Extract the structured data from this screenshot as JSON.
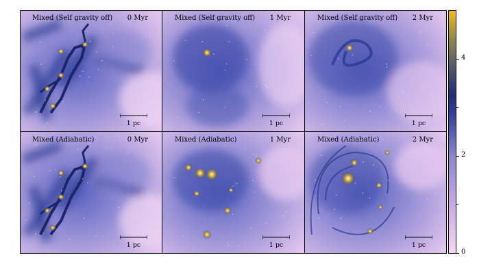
{
  "panels": [
    {
      "label": "Mixed (Self gravity off)",
      "time": "0 Myr",
      "scale": "1 pc",
      "variant": "filaments"
    },
    {
      "label": "Mixed (Self gravity off)",
      "time": "1 Myr",
      "scale": "1 pc",
      "variant": "diffuse"
    },
    {
      "label": "Mixed (Self gravity off)",
      "time": "2 Myr",
      "scale": "1 pc",
      "variant": "swirl"
    },
    {
      "label": "Mixed (Adiabatic)",
      "time": "0 Myr",
      "scale": "1 pc",
      "variant": "filaments"
    },
    {
      "label": "Mixed (Adiabatic)",
      "time": "1 Myr",
      "scale": "1 pc",
      "variant": "clumps"
    },
    {
      "label": "Mixed (Adiabatic)",
      "time": "2 Myr",
      "scale": "1 pc",
      "variant": "spiral"
    }
  ],
  "colorbar": {
    "ticks": [
      "0",
      "2",
      "4"
    ],
    "colors": [
      "#f4d7f5",
      "#8a86d0",
      "#1f2c78",
      "#f3b91d"
    ]
  }
}
